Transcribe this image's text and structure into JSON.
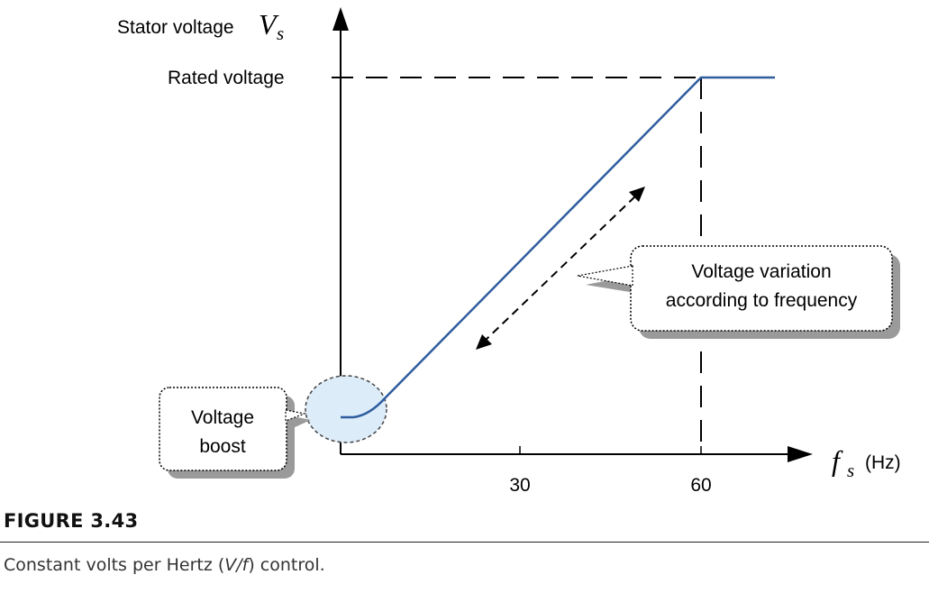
{
  "diagram": {
    "y_axis_label": "Stator voltage",
    "y_axis_symbol": "V",
    "y_axis_symbol_sub": "s",
    "x_axis_symbol": "f",
    "x_axis_symbol_sub": "s",
    "x_axis_unit": "(Hz)",
    "rated_voltage_label": "Rated voltage",
    "tick_labels": [
      "30",
      "60"
    ],
    "boost_callout_lines": [
      "Voltage",
      "boost"
    ],
    "variation_callout_lines": [
      "Voltage variation",
      "according to frequency"
    ],
    "colors": {
      "curve": "#2f5d9e",
      "boost_ellipse_fill": "#dcecf9",
      "shadow": "#9a9a9a"
    }
  },
  "figure": {
    "number": "FIGURE 3.43",
    "caption_before": "Constant volts per Hertz (",
    "caption_italic": "V/f",
    "caption_after": ") control."
  }
}
